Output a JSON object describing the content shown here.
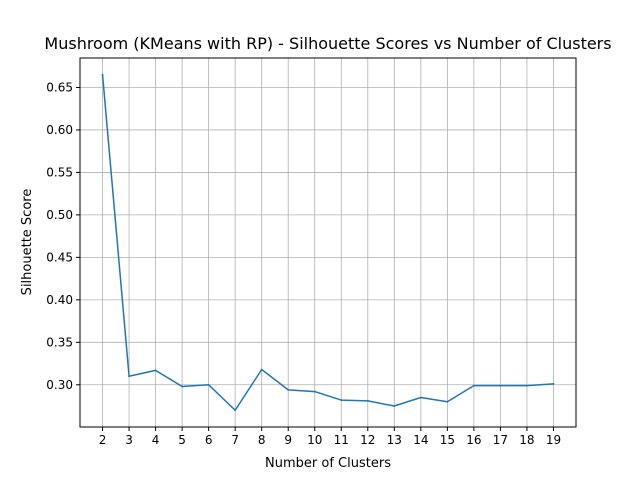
{
  "chart_data": {
    "type": "line",
    "title": "Mushroom (KMeans with RP) - Silhouette Scores vs Number of Clusters",
    "xlabel": "Number of Clusters",
    "ylabel": "Silhouette Score",
    "x": [
      2,
      3,
      4,
      5,
      6,
      7,
      8,
      9,
      10,
      11,
      12,
      13,
      14,
      15,
      16,
      17,
      18,
      19
    ],
    "series": [
      {
        "values": [
          0.665,
          0.31,
          0.317,
          0.298,
          0.3,
          0.27,
          0.318,
          0.294,
          0.292,
          0.282,
          0.281,
          0.275,
          0.285,
          0.28,
          0.299,
          0.299,
          0.299,
          0.301
        ],
        "color": "#1f77b4"
      }
    ],
    "xlim": [
      1.15,
      19.85
    ],
    "ylim": [
      0.2503,
      0.6847
    ],
    "yticks": [
      0.3,
      0.35,
      0.4,
      0.45,
      0.5,
      0.55,
      0.6,
      0.65
    ],
    "ytick_labels": [
      "0.30",
      "0.35",
      "0.40",
      "0.45",
      "0.50",
      "0.55",
      "0.60",
      "0.65"
    ],
    "xtick_labels": [
      "2",
      "3",
      "4",
      "5",
      "6",
      "7",
      "8",
      "9",
      "10",
      "11",
      "12",
      "13",
      "14",
      "15",
      "16",
      "17",
      "18",
      "19"
    ],
    "grid": true
  }
}
